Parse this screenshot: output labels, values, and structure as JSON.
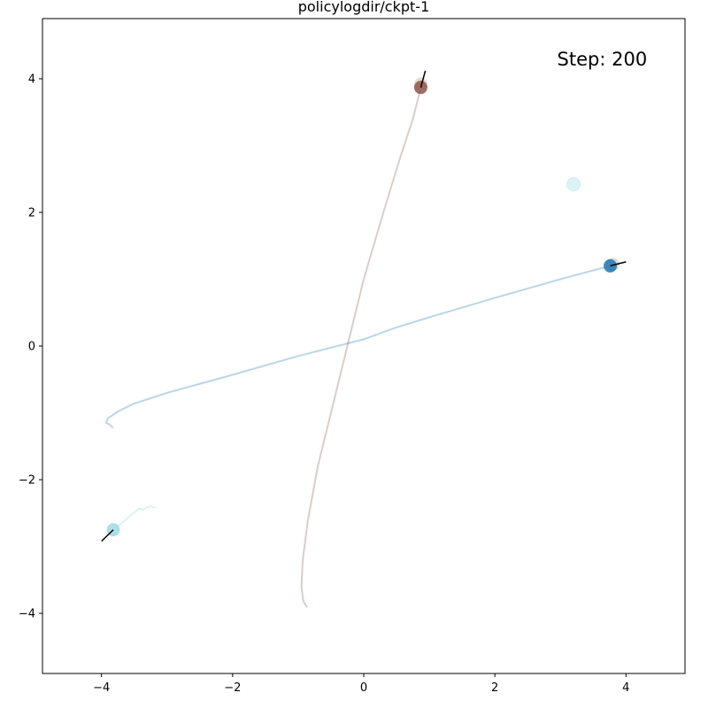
{
  "chart_data": {
    "type": "scatter",
    "title": "policylogdir/ckpt-1",
    "xlabel": "",
    "ylabel": "",
    "xlim": [
      -4.9,
      4.9
    ],
    "ylim": [
      -4.9,
      4.9
    ],
    "xticks": [
      -4,
      -2,
      0,
      2,
      4
    ],
    "yticks": [
      -4,
      -2,
      0,
      2,
      4
    ],
    "xtick_labels": [
      "−4",
      "−2",
      "0",
      "2",
      "4"
    ],
    "ytick_labels": [
      "−4",
      "−2",
      "0",
      "2",
      "4"
    ],
    "grid": false,
    "annotations": [
      {
        "text": "Step: 200",
        "x": 2.95,
        "y": 4.2
      }
    ],
    "trajectories": [
      {
        "color": "#1f77b4",
        "path": [
          [
            -3.83,
            -1.22
          ],
          [
            -3.87,
            -1.18
          ],
          [
            -3.93,
            -1.15
          ],
          [
            -3.9,
            -1.08
          ],
          [
            -3.75,
            -0.98
          ],
          [
            -3.5,
            -0.86
          ],
          [
            -3.0,
            -0.7
          ],
          [
            -2.0,
            -0.43
          ],
          [
            -1.0,
            -0.15
          ],
          [
            0.0,
            0.1
          ],
          [
            0.5,
            0.28
          ],
          [
            1.0,
            0.43
          ],
          [
            2.0,
            0.72
          ],
          [
            3.0,
            1.0
          ],
          [
            3.76,
            1.2
          ]
        ]
      },
      {
        "color": "#8c564b",
        "path": [
          [
            -0.87,
            -3.9
          ],
          [
            -0.92,
            -3.82
          ],
          [
            -0.95,
            -3.6
          ],
          [
            -0.93,
            -3.2
          ],
          [
            -0.85,
            -2.6
          ],
          [
            -0.7,
            -1.8
          ],
          [
            -0.5,
            -1.0
          ],
          [
            -0.25,
            0.0
          ],
          [
            0.0,
            1.0
          ],
          [
            0.3,
            2.0
          ],
          [
            0.55,
            2.8
          ],
          [
            0.75,
            3.4
          ],
          [
            0.87,
            3.87
          ]
        ]
      },
      {
        "color": "#9edae5",
        "path": [
          [
            -3.82,
            -2.75
          ],
          [
            -3.7,
            -2.66
          ],
          [
            -3.55,
            -2.53
          ],
          [
            -3.42,
            -2.43
          ],
          [
            -3.36,
            -2.45
          ],
          [
            -3.3,
            -2.41
          ],
          [
            -3.24,
            -2.4
          ],
          [
            -3.19,
            -2.42
          ]
        ]
      }
    ],
    "agents": [
      {
        "x": 3.76,
        "y": 1.2,
        "color": "#1f77b4",
        "heading": [
          4.0,
          1.26
        ]
      },
      {
        "x": 0.87,
        "y": 3.87,
        "color": "#8c564b",
        "heading": [
          0.94,
          4.12
        ]
      },
      {
        "x": -3.82,
        "y": -2.75,
        "color": "#9edae5",
        "heading": [
          -4.0,
          -2.92
        ]
      }
    ],
    "ghost_agents": [
      {
        "x": 3.8,
        "y": 1.22,
        "color": "#d9d3cc"
      },
      {
        "x": 0.87,
        "y": 3.92,
        "color": "#e0d0cc"
      }
    ],
    "goals": [
      {
        "x": 3.2,
        "y": 2.42,
        "color": "#dcf3f5"
      }
    ]
  }
}
